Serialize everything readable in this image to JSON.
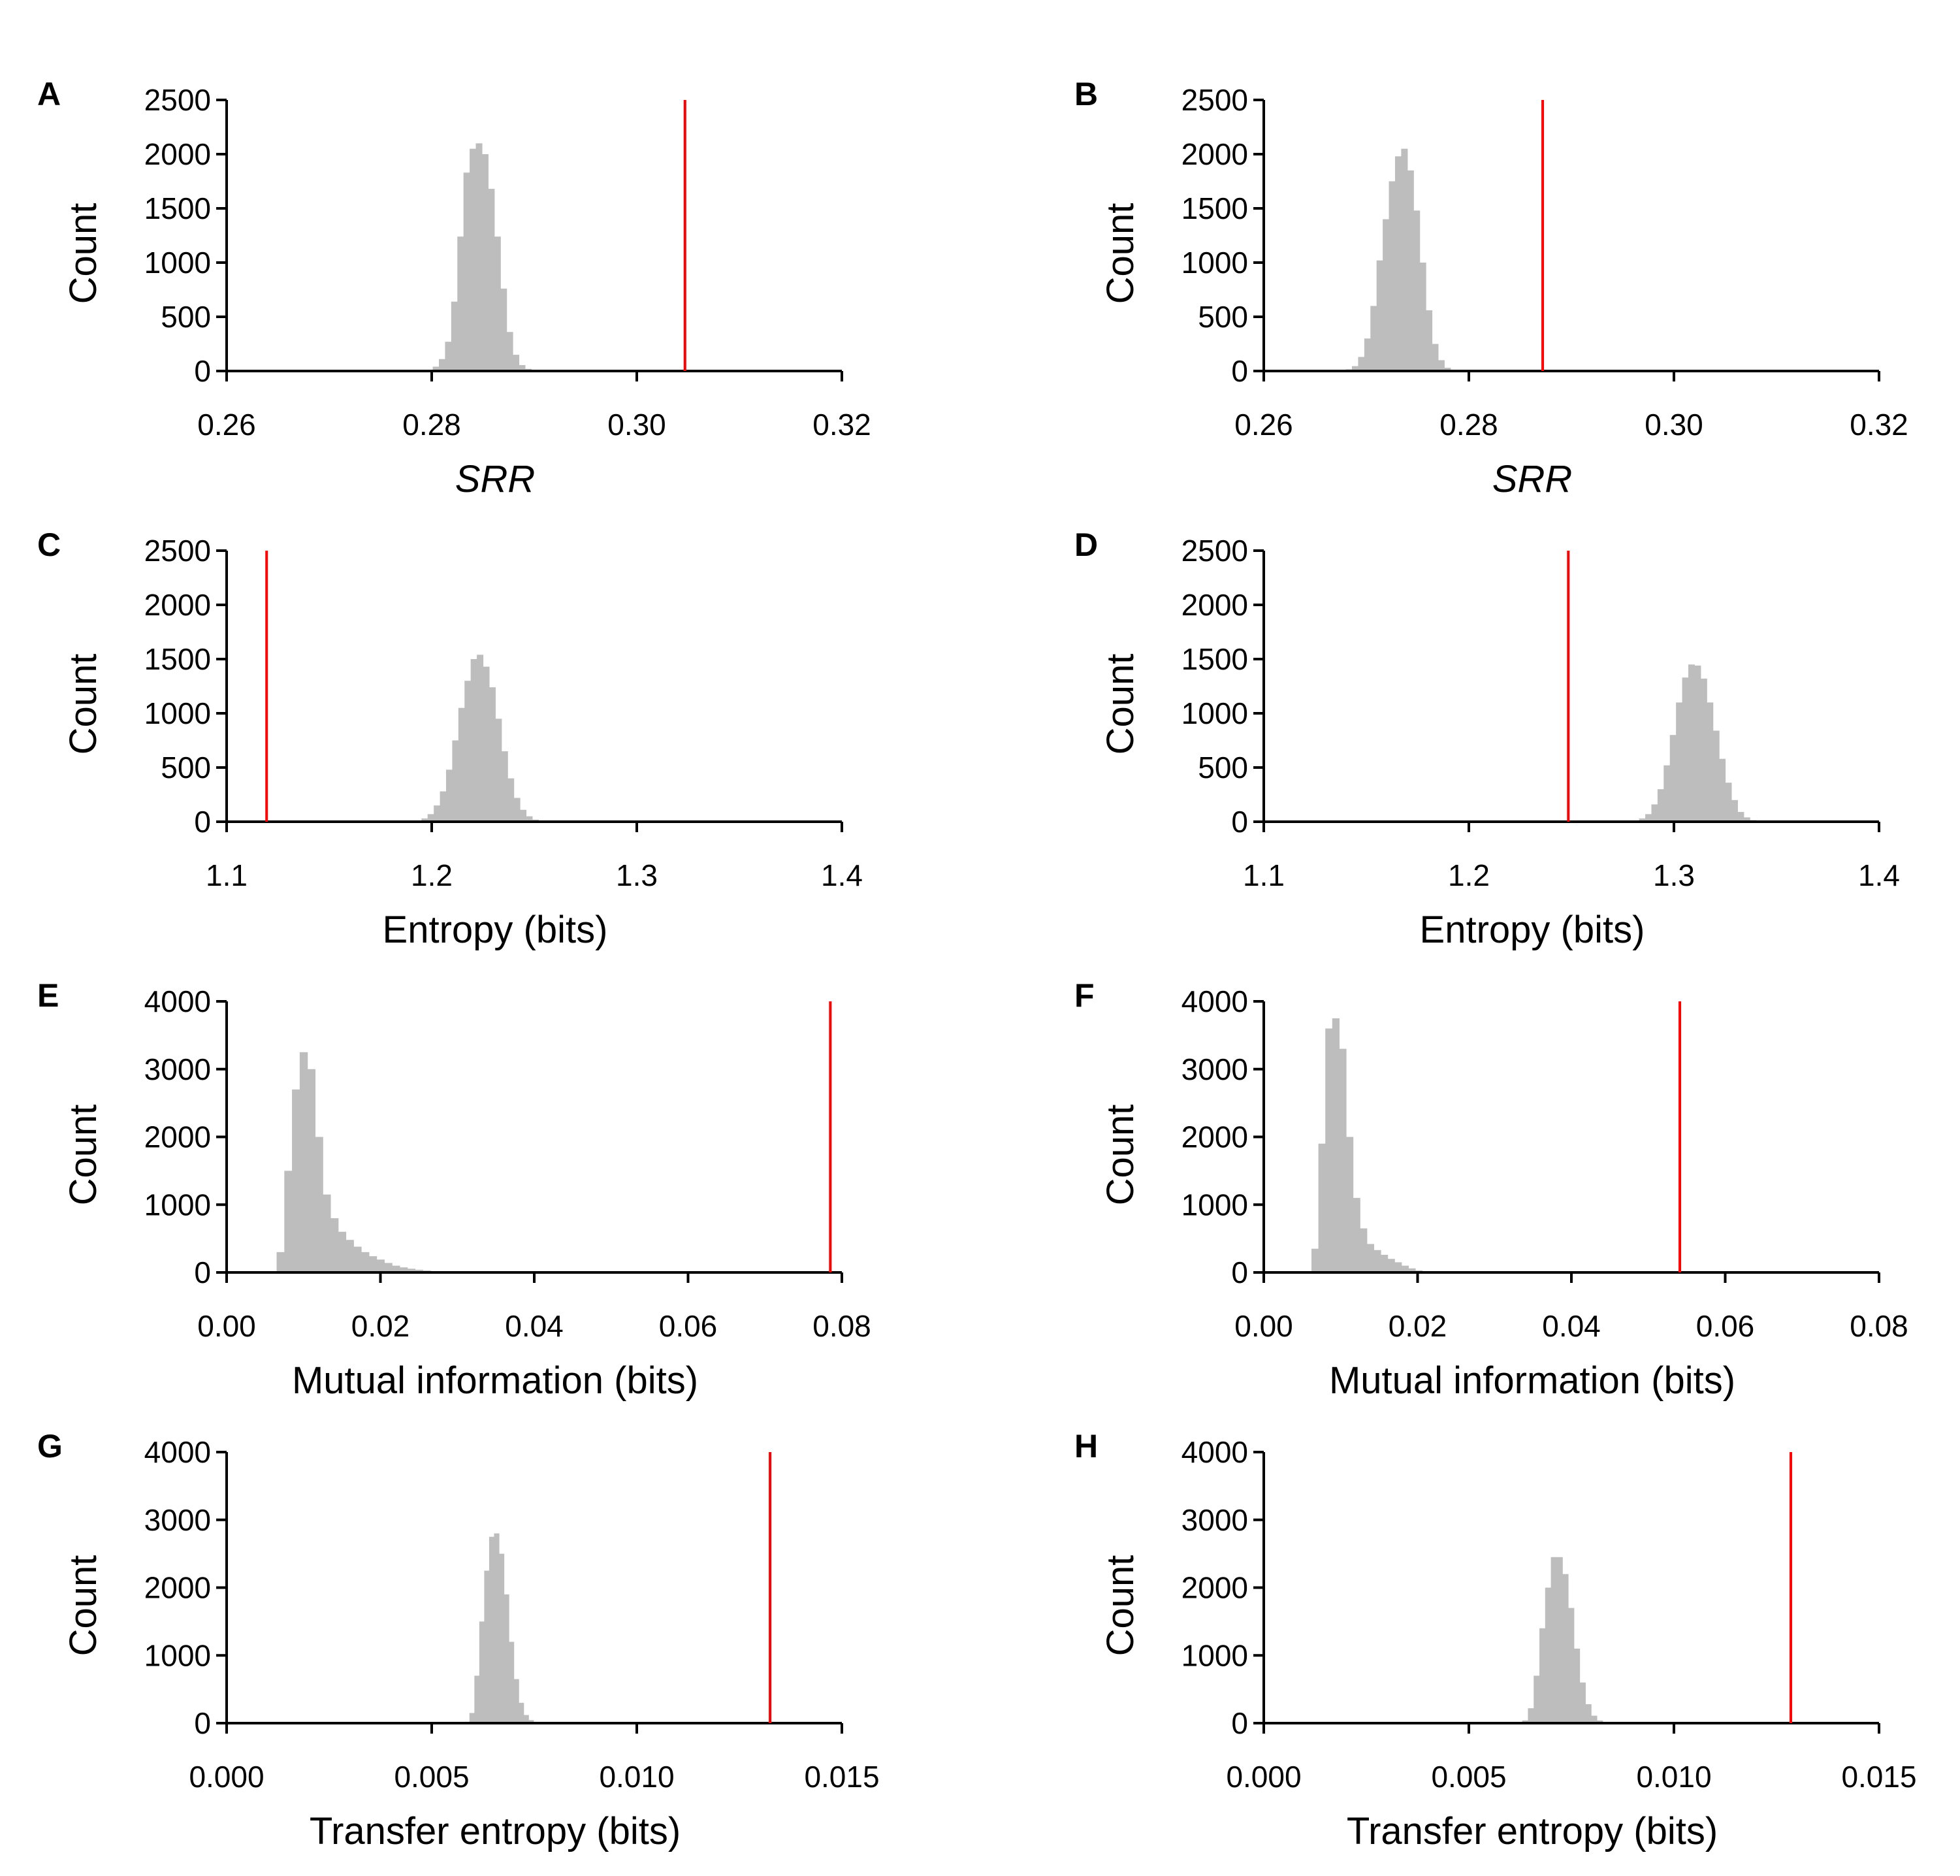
{
  "colors": {
    "histogram": "#bdbdbd",
    "observed_line": "#ff0000",
    "axis": "#000000"
  },
  "chart_data": [
    {
      "panel": "A",
      "type": "bar",
      "subtype": "histogram",
      "xlabel": "SRR",
      "xlabel_italic": true,
      "ylabel": "Count",
      "xlim": [
        0.26,
        0.32
      ],
      "xticks": [
        "0.26",
        "0.28",
        "0.30",
        "0.32"
      ],
      "ylim": [
        0,
        2500
      ],
      "yticks": [
        "0",
        "500",
        "1000",
        "1500",
        "2000",
        "2500"
      ],
      "observed_value": 0.3047,
      "histogram": {
        "bin_start": 0.2795,
        "bin_width": 0.0006,
        "counts": [
          10,
          40,
          110,
          270,
          640,
          1240,
          1830,
          2050,
          2100,
          2000,
          1680,
          1240,
          760,
          360,
          150,
          55,
          20,
          5
        ]
      }
    },
    {
      "panel": "B",
      "type": "bar",
      "subtype": "histogram",
      "xlabel": "SRR",
      "xlabel_italic": true,
      "ylabel": "Count",
      "xlim": [
        0.26,
        0.32
      ],
      "xticks": [
        "0.26",
        "0.28",
        "0.30",
        "0.32"
      ],
      "ylim": [
        0,
        2500
      ],
      "yticks": [
        "0",
        "500",
        "1000",
        "1500",
        "2000",
        "2500"
      ],
      "observed_value": 0.2872,
      "histogram": {
        "bin_start": 0.268,
        "bin_width": 0.0006,
        "counts": [
          15,
          45,
          130,
          300,
          600,
          1020,
          1400,
          1750,
          1980,
          2050,
          1850,
          1480,
          1000,
          560,
          250,
          100,
          30,
          10
        ]
      }
    },
    {
      "panel": "C",
      "type": "bar",
      "subtype": "histogram",
      "xlabel": "Entropy (bits)",
      "xlabel_italic": false,
      "ylabel": "Count",
      "xlim": [
        1.1,
        1.4
      ],
      "xticks": [
        "1.1",
        "1.2",
        "1.3",
        "1.4"
      ],
      "ylim": [
        0,
        2500
      ],
      "yticks": [
        "0",
        "500",
        "1000",
        "1500",
        "2000",
        "2500"
      ],
      "observed_value": 1.1195,
      "histogram": {
        "bin_start": 1.192,
        "bin_width": 0.003,
        "counts": [
          10,
          30,
          70,
          150,
          280,
          480,
          750,
          1050,
          1300,
          1500,
          1540,
          1430,
          1240,
          950,
          650,
          400,
          220,
          110,
          50,
          20,
          8
        ]
      }
    },
    {
      "panel": "D",
      "type": "bar",
      "subtype": "histogram",
      "xlabel": "Entropy (bits)",
      "xlabel_italic": false,
      "ylabel": "Count",
      "xlim": [
        1.1,
        1.4
      ],
      "xticks": [
        "1.1",
        "1.2",
        "1.3",
        "1.4"
      ],
      "ylim": [
        0,
        2500
      ],
      "yticks": [
        "0",
        "500",
        "1000",
        "1500",
        "2000",
        "2500"
      ],
      "observed_value": 1.2485,
      "histogram": {
        "bin_start": 1.28,
        "bin_width": 0.003,
        "counts": [
          10,
          30,
          70,
          160,
          300,
          520,
          800,
          1100,
          1330,
          1450,
          1440,
          1320,
          1100,
          840,
          580,
          360,
          200,
          90,
          40,
          15
        ]
      }
    },
    {
      "panel": "E",
      "type": "bar",
      "subtype": "histogram",
      "xlabel": "Mutual information (bits)",
      "xlabel_italic": false,
      "ylabel": "Count",
      "xlim": [
        0.0,
        0.08
      ],
      "xticks": [
        "0.00",
        "0.02",
        "0.04",
        "0.06",
        "0.08"
      ],
      "ylim": [
        0,
        4000
      ],
      "yticks": [
        "0",
        "1000",
        "2000",
        "3000",
        "4000"
      ],
      "observed_value": 0.0785,
      "histogram": {
        "bin_start": 0.0065,
        "bin_width": 0.001,
        "counts": [
          300,
          1500,
          2700,
          3250,
          3000,
          2000,
          1150,
          800,
          600,
          480,
          380,
          300,
          240,
          190,
          140,
          100,
          75,
          55,
          40,
          28,
          18,
          10,
          5
        ]
      }
    },
    {
      "panel": "F",
      "type": "bar",
      "subtype": "histogram",
      "xlabel": "Mutual information (bits)",
      "xlabel_italic": false,
      "ylabel": "Count",
      "xlim": [
        0.0,
        0.08
      ],
      "xticks": [
        "0.00",
        "0.02",
        "0.04",
        "0.06",
        "0.08"
      ],
      "ylim": [
        0,
        4000
      ],
      "yticks": [
        "0",
        "1000",
        "2000",
        "3000",
        "4000"
      ],
      "observed_value": 0.0541,
      "histogram": {
        "bin_start": 0.0062,
        "bin_width": 0.0009,
        "counts": [
          350,
          1900,
          3600,
          3750,
          3300,
          2000,
          1100,
          650,
          420,
          330,
          260,
          200,
          150,
          100,
          60,
          30,
          12
        ]
      }
    },
    {
      "panel": "G",
      "type": "bar",
      "subtype": "histogram",
      "xlabel": "Transfer entropy (bits)",
      "xlabel_italic": false,
      "ylabel": "Count",
      "xlim": [
        0.0,
        0.015
      ],
      "xticks": [
        "0.000",
        "0.005",
        "0.010",
        "0.015"
      ],
      "ylim": [
        0,
        4000
      ],
      "yticks": [
        "0",
        "1000",
        "2000",
        "3000",
        "4000"
      ],
      "observed_value": 0.01325,
      "histogram": {
        "bin_start": 0.0058,
        "bin_width": 0.00012,
        "counts": [
          20,
          150,
          700,
          1500,
          2250,
          2750,
          2800,
          2500,
          1900,
          1200,
          650,
          300,
          120,
          45,
          15,
          5
        ]
      }
    },
    {
      "panel": "H",
      "type": "bar",
      "subtype": "histogram",
      "xlabel": "Transfer entropy (bits)",
      "xlabel_italic": false,
      "ylabel": "Count",
      "xlim": [
        0.0,
        0.015
      ],
      "xticks": [
        "0.000",
        "0.005",
        "0.010",
        "0.015"
      ],
      "ylim": [
        0,
        4000
      ],
      "yticks": [
        "0",
        "1000",
        "2000",
        "3000",
        "4000"
      ],
      "observed_value": 0.01285,
      "histogram": {
        "bin_start": 0.0063,
        "bin_width": 0.00014,
        "counts": [
          40,
          220,
          700,
          1400,
          2000,
          2450,
          2450,
          2200,
          1700,
          1100,
          600,
          280,
          110,
          40,
          12
        ]
      }
    }
  ]
}
